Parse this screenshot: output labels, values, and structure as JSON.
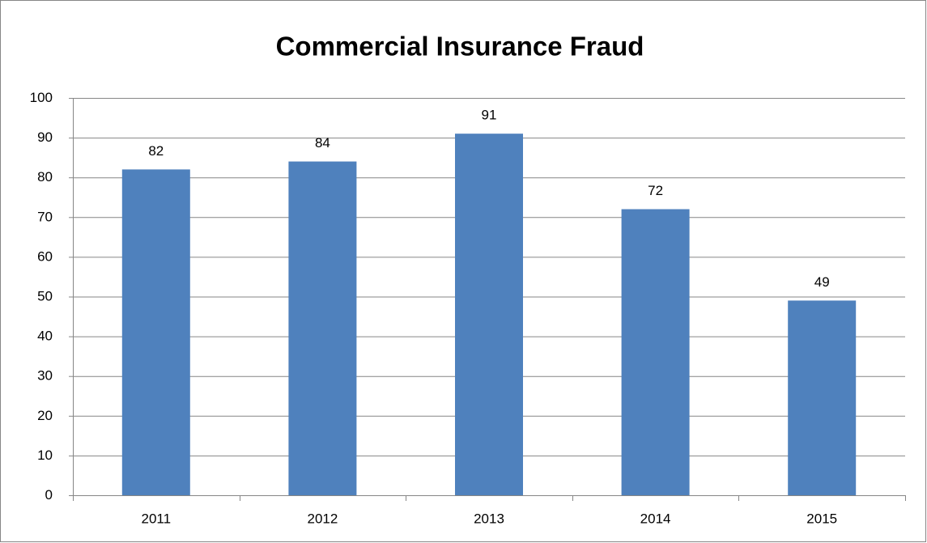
{
  "chart_data": {
    "type": "bar",
    "title": "Commercial Insurance Fraud",
    "categories": [
      "2011",
      "2012",
      "2013",
      "2014",
      "2015"
    ],
    "values": [
      82,
      84,
      91,
      72,
      49
    ],
    "color": "#4f81bd",
    "ylim": [
      0,
      100
    ],
    "yticks": [
      0,
      10,
      20,
      30,
      40,
      50,
      60,
      70,
      80,
      90,
      100
    ],
    "grid": true,
    "data_labels": true
  }
}
